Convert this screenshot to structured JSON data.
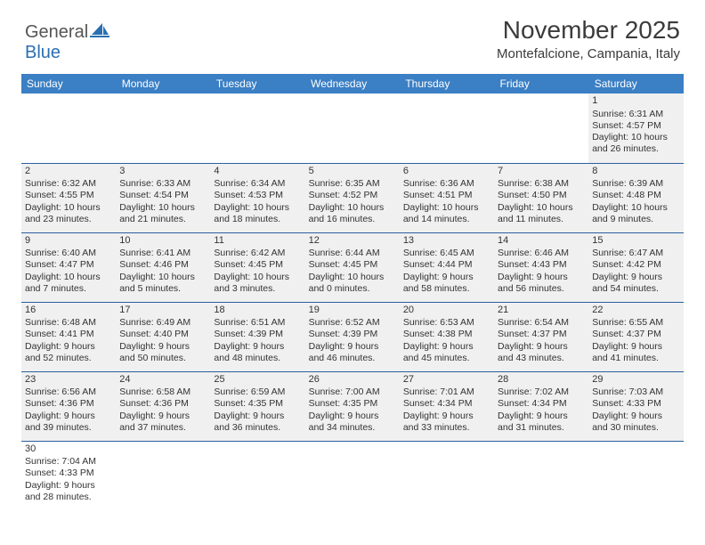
{
  "logo": {
    "part1": "General",
    "part2": "Blue"
  },
  "title": "November 2025",
  "location": "Montefalcione, Campania, Italy",
  "colors": {
    "header_bg": "#3b7fc4",
    "header_text": "#ffffff",
    "cell_bg": "#f0f0f0",
    "border": "#2b5f9e",
    "logo_grey": "#555555",
    "logo_blue": "#2b6fb0",
    "text": "#333333",
    "page_bg": "#ffffff"
  },
  "day_headers": [
    "Sunday",
    "Monday",
    "Tuesday",
    "Wednesday",
    "Thursday",
    "Friday",
    "Saturday"
  ],
  "weeks": [
    [
      null,
      null,
      null,
      null,
      null,
      null,
      {
        "n": "1",
        "sunrise": "6:31 AM",
        "sunset": "4:57 PM",
        "daylight": "10 hours and 26 minutes."
      }
    ],
    [
      {
        "n": "2",
        "sunrise": "6:32 AM",
        "sunset": "4:55 PM",
        "daylight": "10 hours and 23 minutes."
      },
      {
        "n": "3",
        "sunrise": "6:33 AM",
        "sunset": "4:54 PM",
        "daylight": "10 hours and 21 minutes."
      },
      {
        "n": "4",
        "sunrise": "6:34 AM",
        "sunset": "4:53 PM",
        "daylight": "10 hours and 18 minutes."
      },
      {
        "n": "5",
        "sunrise": "6:35 AM",
        "sunset": "4:52 PM",
        "daylight": "10 hours and 16 minutes."
      },
      {
        "n": "6",
        "sunrise": "6:36 AM",
        "sunset": "4:51 PM",
        "daylight": "10 hours and 14 minutes."
      },
      {
        "n": "7",
        "sunrise": "6:38 AM",
        "sunset": "4:50 PM",
        "daylight": "10 hours and 11 minutes."
      },
      {
        "n": "8",
        "sunrise": "6:39 AM",
        "sunset": "4:48 PM",
        "daylight": "10 hours and 9 minutes."
      }
    ],
    [
      {
        "n": "9",
        "sunrise": "6:40 AM",
        "sunset": "4:47 PM",
        "daylight": "10 hours and 7 minutes."
      },
      {
        "n": "10",
        "sunrise": "6:41 AM",
        "sunset": "4:46 PM",
        "daylight": "10 hours and 5 minutes."
      },
      {
        "n": "11",
        "sunrise": "6:42 AM",
        "sunset": "4:45 PM",
        "daylight": "10 hours and 3 minutes."
      },
      {
        "n": "12",
        "sunrise": "6:44 AM",
        "sunset": "4:45 PM",
        "daylight": "10 hours and 0 minutes."
      },
      {
        "n": "13",
        "sunrise": "6:45 AM",
        "sunset": "4:44 PM",
        "daylight": "9 hours and 58 minutes."
      },
      {
        "n": "14",
        "sunrise": "6:46 AM",
        "sunset": "4:43 PM",
        "daylight": "9 hours and 56 minutes."
      },
      {
        "n": "15",
        "sunrise": "6:47 AM",
        "sunset": "4:42 PM",
        "daylight": "9 hours and 54 minutes."
      }
    ],
    [
      {
        "n": "16",
        "sunrise": "6:48 AM",
        "sunset": "4:41 PM",
        "daylight": "9 hours and 52 minutes."
      },
      {
        "n": "17",
        "sunrise": "6:49 AM",
        "sunset": "4:40 PM",
        "daylight": "9 hours and 50 minutes."
      },
      {
        "n": "18",
        "sunrise": "6:51 AM",
        "sunset": "4:39 PM",
        "daylight": "9 hours and 48 minutes."
      },
      {
        "n": "19",
        "sunrise": "6:52 AM",
        "sunset": "4:39 PM",
        "daylight": "9 hours and 46 minutes."
      },
      {
        "n": "20",
        "sunrise": "6:53 AM",
        "sunset": "4:38 PM",
        "daylight": "9 hours and 45 minutes."
      },
      {
        "n": "21",
        "sunrise": "6:54 AM",
        "sunset": "4:37 PM",
        "daylight": "9 hours and 43 minutes."
      },
      {
        "n": "22",
        "sunrise": "6:55 AM",
        "sunset": "4:37 PM",
        "daylight": "9 hours and 41 minutes."
      }
    ],
    [
      {
        "n": "23",
        "sunrise": "6:56 AM",
        "sunset": "4:36 PM",
        "daylight": "9 hours and 39 minutes."
      },
      {
        "n": "24",
        "sunrise": "6:58 AM",
        "sunset": "4:36 PM",
        "daylight": "9 hours and 37 minutes."
      },
      {
        "n": "25",
        "sunrise": "6:59 AM",
        "sunset": "4:35 PM",
        "daylight": "9 hours and 36 minutes."
      },
      {
        "n": "26",
        "sunrise": "7:00 AM",
        "sunset": "4:35 PM",
        "daylight": "9 hours and 34 minutes."
      },
      {
        "n": "27",
        "sunrise": "7:01 AM",
        "sunset": "4:34 PM",
        "daylight": "9 hours and 33 minutes."
      },
      {
        "n": "28",
        "sunrise": "7:02 AM",
        "sunset": "4:34 PM",
        "daylight": "9 hours and 31 minutes."
      },
      {
        "n": "29",
        "sunrise": "7:03 AM",
        "sunset": "4:33 PM",
        "daylight": "9 hours and 30 minutes."
      }
    ],
    [
      {
        "n": "30",
        "sunrise": "7:04 AM",
        "sunset": "4:33 PM",
        "daylight": "9 hours and 28 minutes."
      },
      null,
      null,
      null,
      null,
      null,
      null
    ]
  ],
  "labels": {
    "sunrise": "Sunrise: ",
    "sunset": "Sunset: ",
    "daylight": "Daylight: "
  }
}
